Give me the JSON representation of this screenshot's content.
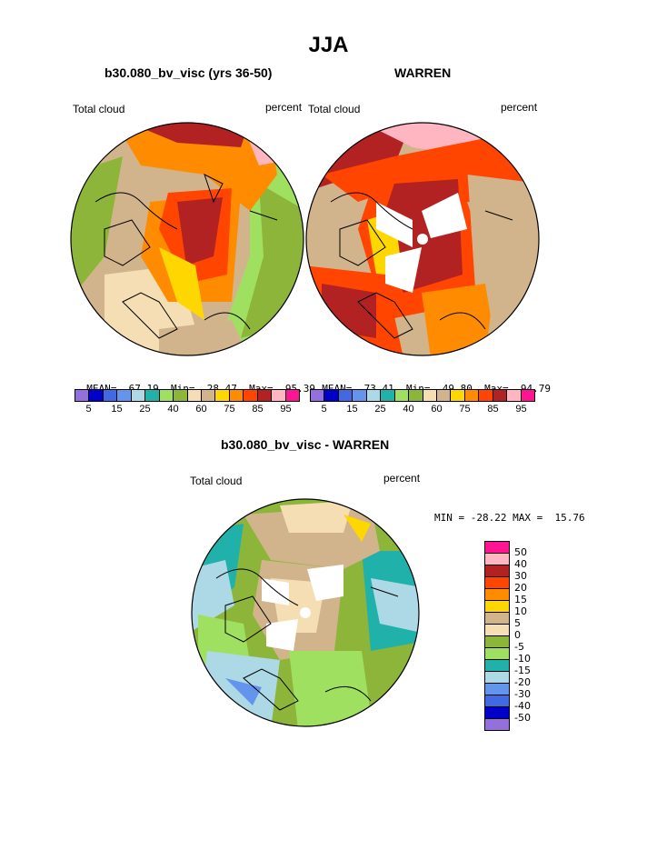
{
  "page": {
    "title": "JJA"
  },
  "panels": {
    "left": {
      "title": "b30.080_bv_visc (yrs 36-50)",
      "left_label": "Total cloud",
      "right_label": "percent",
      "stats": {
        "mean_label": "MEAN=",
        "mean": "67.19",
        "min_label": "Min=",
        "min": "28.47",
        "max_label": "Max=",
        "max": "95.39"
      }
    },
    "right": {
      "title": "WARREN",
      "left_label": "Total cloud",
      "right_label": "percent",
      "stats": {
        "mean_label": "MEAN=",
        "mean": "73.41",
        "min_label": "Min=",
        "min": "49.80",
        "max_label": "Max=",
        "max": "94.79"
      }
    },
    "diff": {
      "title": "b30.080_bv_visc - WARREN",
      "left_label": "Total cloud",
      "right_label": "percent",
      "minmax": "MIN = -28.22 MAX =  15.76"
    }
  },
  "colorbar_abs": {
    "colors": [
      "#9370db",
      "#0000c8",
      "#4169e1",
      "#6495ed",
      "#add8e6",
      "#20b2aa",
      "#a0e060",
      "#8db53a",
      "#f5deb3",
      "#d2b48c",
      "#ffd700",
      "#ff8c00",
      "#ff4500",
      "#b22222",
      "#ffb6c1",
      "#ff1493"
    ],
    "tick_labels": [
      "5",
      "15",
      "25",
      "40",
      "60",
      "75",
      "85",
      "95"
    ]
  },
  "colorbar_diff": {
    "colors": [
      "#ff1493",
      "#ffb6c1",
      "#b22222",
      "#ff4500",
      "#ff8c00",
      "#ffd700",
      "#d2b48c",
      "#f5deb3",
      "#8db53a",
      "#a0e060",
      "#20b2aa",
      "#add8e6",
      "#6495ed",
      "#4169e1",
      "#0000c8",
      "#9370db"
    ],
    "tick_labels": [
      "50",
      "40",
      "30",
      "20",
      "15",
      "10",
      "5",
      "0",
      "-5",
      "-10",
      "-15",
      "-20",
      "-30",
      "-40",
      "-50"
    ]
  }
}
